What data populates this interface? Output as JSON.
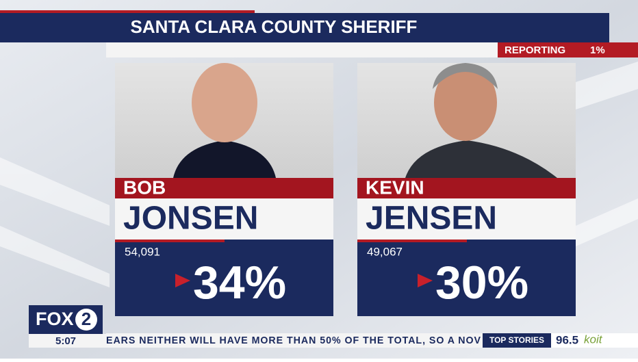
{
  "header": {
    "title": "SANTA CLARA COUNTY SHERIFF",
    "reporting_label": "REPORTING",
    "reporting_value": "1%"
  },
  "candidates": [
    {
      "first_name": "BOB",
      "last_name": "JONSEN",
      "votes": "54,091",
      "percent": "34%"
    },
    {
      "first_name": "KEVIN",
      "last_name": "JENSEN",
      "votes": "49,067",
      "percent": "30%"
    }
  ],
  "footer": {
    "logo": "FOX",
    "logo_number": "2",
    "time": "5:07",
    "ticker": "EARS NEITHER WILL HAVE MORE THAN 50% OF THE TOTAL, SO A NOV",
    "section": "TOP STORIES",
    "station_freq": "96.5",
    "station_name": "koit"
  }
}
